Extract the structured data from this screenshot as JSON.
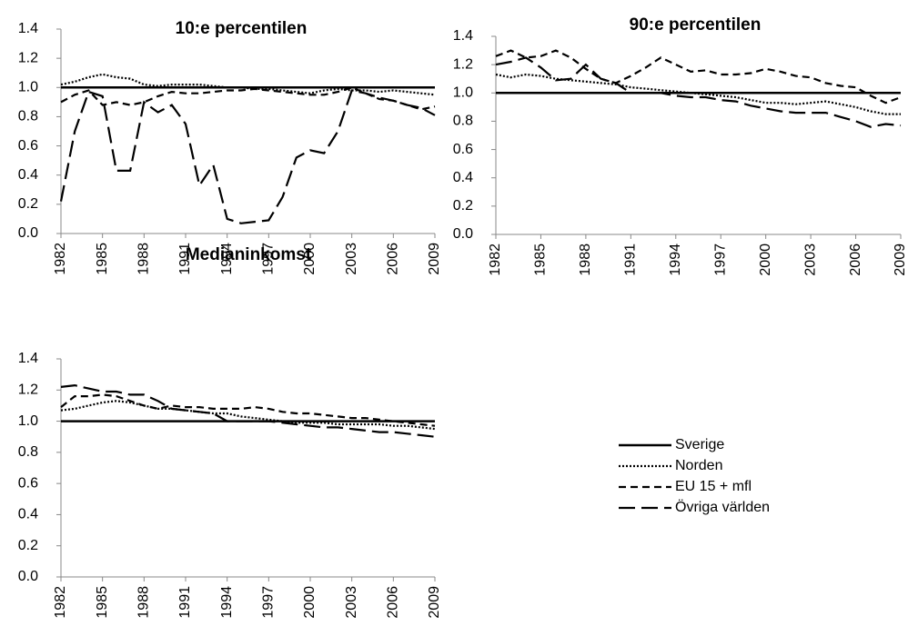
{
  "chart_data": [
    {
      "type": "line",
      "title": "10:e percentilen",
      "x": [
        1982,
        1983,
        1984,
        1985,
        1986,
        1987,
        1988,
        1989,
        1990,
        1991,
        1992,
        1993,
        1994,
        1995,
        1996,
        1997,
        1998,
        1999,
        2000,
        2001,
        2002,
        2003,
        2004,
        2005,
        2006,
        2007,
        2008,
        2009
      ],
      "xlim": [
        1982,
        2009
      ],
      "xticks": [
        1982,
        1985,
        1988,
        1991,
        1994,
        1997,
        2000,
        2003,
        2006,
        2009
      ],
      "ylim": [
        0,
        1.4
      ],
      "yticks": [
        {
          "value": 0,
          "label": "0.0"
        },
        0.2,
        0.4,
        0.6,
        0.8,
        {
          "value": 1,
          "label": "1.0"
        },
        1.2,
        1.4
      ],
      "series": [
        {
          "name": "Sverige",
          "color": "#000000",
          "dash": "none",
          "values": [
            1,
            1,
            1,
            1,
            1,
            1,
            1,
            1,
            1,
            1,
            1,
            1,
            1,
            1,
            1,
            1,
            1,
            1,
            1,
            1,
            1,
            1,
            1,
            1,
            1,
            1,
            1,
            1
          ]
        },
        {
          "name": "Norden",
          "color": "#000000",
          "dash": "2,2",
          "values": [
            1.02,
            1.04,
            1.07,
            1.09,
            1.07,
            1.06,
            1.02,
            1.01,
            1.02,
            1.02,
            1.02,
            1.01,
            1.0,
            1.0,
            0.99,
            0.99,
            0.98,
            0.97,
            0.96,
            0.98,
            0.99,
            0.98,
            0.98,
            0.97,
            0.98,
            0.97,
            0.96,
            0.95
          ]
        },
        {
          "name": "EU 15 + mfl",
          "color": "#000000",
          "dash": "8,5",
          "values": [
            0.9,
            0.95,
            0.98,
            0.88,
            0.9,
            0.88,
            0.9,
            0.94,
            0.97,
            0.96,
            0.96,
            0.97,
            0.98,
            0.98,
            0.99,
            0.98,
            0.97,
            0.96,
            0.95,
            0.95,
            0.97,
            1.0,
            0.96,
            0.92,
            0.91,
            0.88,
            0.85,
            0.87
          ]
        },
        {
          "name": "Övriga världen",
          "color": "#000000",
          "dash": "18,7",
          "values": [
            0.22,
            0.7,
            0.97,
            0.94,
            0.43,
            0.43,
            0.9,
            0.83,
            0.88,
            0.75,
            0.33,
            0.47,
            0.1,
            0.07,
            0.08,
            0.09,
            0.25,
            0.52,
            0.57,
            0.55,
            0.7,
            0.98,
            0.96,
            0.93,
            0.91,
            0.88,
            0.86,
            0.81
          ]
        }
      ]
    },
    {
      "type": "line",
      "title": "90:e percentilen",
      "x": [
        1982,
        1983,
        1984,
        1985,
        1986,
        1987,
        1988,
        1989,
        1990,
        1991,
        1992,
        1993,
        1994,
        1995,
        1996,
        1997,
        1998,
        1999,
        2000,
        2001,
        2002,
        2003,
        2004,
        2005,
        2006,
        2007,
        2008,
        2009
      ],
      "xlim": [
        1982,
        2009
      ],
      "xticks": [
        1982,
        1985,
        1988,
        1991,
        1994,
        1997,
        2000,
        2003,
        2006,
        2009
      ],
      "ylim": [
        0,
        1.4
      ],
      "yticks": [
        {
          "value": 0,
          "label": "0.0"
        },
        0.2,
        0.4,
        0.6,
        0.8,
        {
          "value": 1,
          "label": "1.0"
        },
        1.2,
        1.4
      ],
      "series": [
        {
          "color": "#000000",
          "dash": "none",
          "values": [
            1,
            1,
            1,
            1,
            1,
            1,
            1,
            1,
            1,
            1,
            1,
            1,
            1,
            1,
            1,
            1,
            1,
            1,
            1,
            1,
            1,
            1,
            1,
            1,
            1,
            1,
            1,
            1
          ]
        },
        {
          "color": "#000000",
          "dash": "2,2",
          "values": [
            1.13,
            1.11,
            1.13,
            1.12,
            1.1,
            1.09,
            1.08,
            1.07,
            1.06,
            1.04,
            1.03,
            1.02,
            1.01,
            1.0,
            0.99,
            0.98,
            0.97,
            0.95,
            0.93,
            0.93,
            0.92,
            0.93,
            0.94,
            0.92,
            0.9,
            0.87,
            0.85,
            0.85
          ]
        },
        {
          "color": "#000000",
          "dash": "8,5",
          "values": [
            1.26,
            1.3,
            1.25,
            1.26,
            1.3,
            1.25,
            1.17,
            1.1,
            1.07,
            1.12,
            1.18,
            1.25,
            1.2,
            1.15,
            1.16,
            1.13,
            1.13,
            1.14,
            1.17,
            1.15,
            1.12,
            1.11,
            1.07,
            1.05,
            1.04,
            0.98,
            0.93,
            0.97
          ]
        },
        {
          "color": "#000000",
          "dash": "18,7",
          "values": [
            1.2,
            1.22,
            1.25,
            1.18,
            1.09,
            1.1,
            1.2,
            1.1,
            1.07,
            1.0,
            1.0,
            1.0,
            0.98,
            0.97,
            0.97,
            0.95,
            0.94,
            0.91,
            0.89,
            0.87,
            0.86,
            0.86,
            0.86,
            0.83,
            0.8,
            0.76,
            0.78,
            0.77
          ]
        }
      ]
    },
    {
      "type": "line",
      "title": "Medianinkomst",
      "x": [
        1982,
        1983,
        1984,
        1985,
        1986,
        1987,
        1988,
        1989,
        1990,
        1991,
        1992,
        1993,
        1994,
        1995,
        1996,
        1997,
        1998,
        1999,
        2000,
        2001,
        2002,
        2003,
        2004,
        2005,
        2006,
        2007,
        2008,
        2009
      ],
      "xlim": [
        1982,
        2009
      ],
      "xticks": [
        1982,
        1985,
        1988,
        1991,
        1994,
        1997,
        2000,
        2003,
        2006,
        2009
      ],
      "ylim": [
        0,
        1.4
      ],
      "yticks": [
        {
          "value": 0,
          "label": "0.0"
        },
        0.2,
        0.4,
        0.6,
        0.8,
        {
          "value": 1,
          "label": "1.0"
        },
        1.2,
        1.4
      ],
      "series": [
        {
          "color": "#000000",
          "dash": "none",
          "values": [
            1,
            1,
            1,
            1,
            1,
            1,
            1,
            1,
            1,
            1,
            1,
            1,
            1,
            1,
            1,
            1,
            1,
            1,
            1,
            1,
            1,
            1,
            1,
            1,
            1,
            1,
            1,
            1
          ]
        },
        {
          "color": "#000000",
          "dash": "2,2",
          "values": [
            1.07,
            1.08,
            1.1,
            1.12,
            1.13,
            1.12,
            1.1,
            1.08,
            1.08,
            1.07,
            1.06,
            1.05,
            1.05,
            1.03,
            1.02,
            1.01,
            1.0,
            0.99,
            0.99,
            0.99,
            0.98,
            0.98,
            0.98,
            0.98,
            0.97,
            0.97,
            0.96,
            0.95
          ]
        },
        {
          "color": "#000000",
          "dash": "8,5",
          "values": [
            1.09,
            1.16,
            1.16,
            1.17,
            1.16,
            1.13,
            1.1,
            1.08,
            1.1,
            1.09,
            1.09,
            1.08,
            1.08,
            1.08,
            1.09,
            1.08,
            1.06,
            1.05,
            1.05,
            1.04,
            1.03,
            1.02,
            1.02,
            1.01,
            1.0,
            0.99,
            0.98,
            0.97
          ]
        },
        {
          "color": "#000000",
          "dash": "18,7",
          "values": [
            1.22,
            1.23,
            1.21,
            1.19,
            1.19,
            1.17,
            1.17,
            1.13,
            1.08,
            1.07,
            1.06,
            1.05,
            1.0,
            1.0,
            1.0,
            1.0,
            0.99,
            0.98,
            0.97,
            0.96,
            0.96,
            0.95,
            0.94,
            0.93,
            0.93,
            0.92,
            0.91,
            0.9
          ]
        }
      ]
    }
  ]
}
